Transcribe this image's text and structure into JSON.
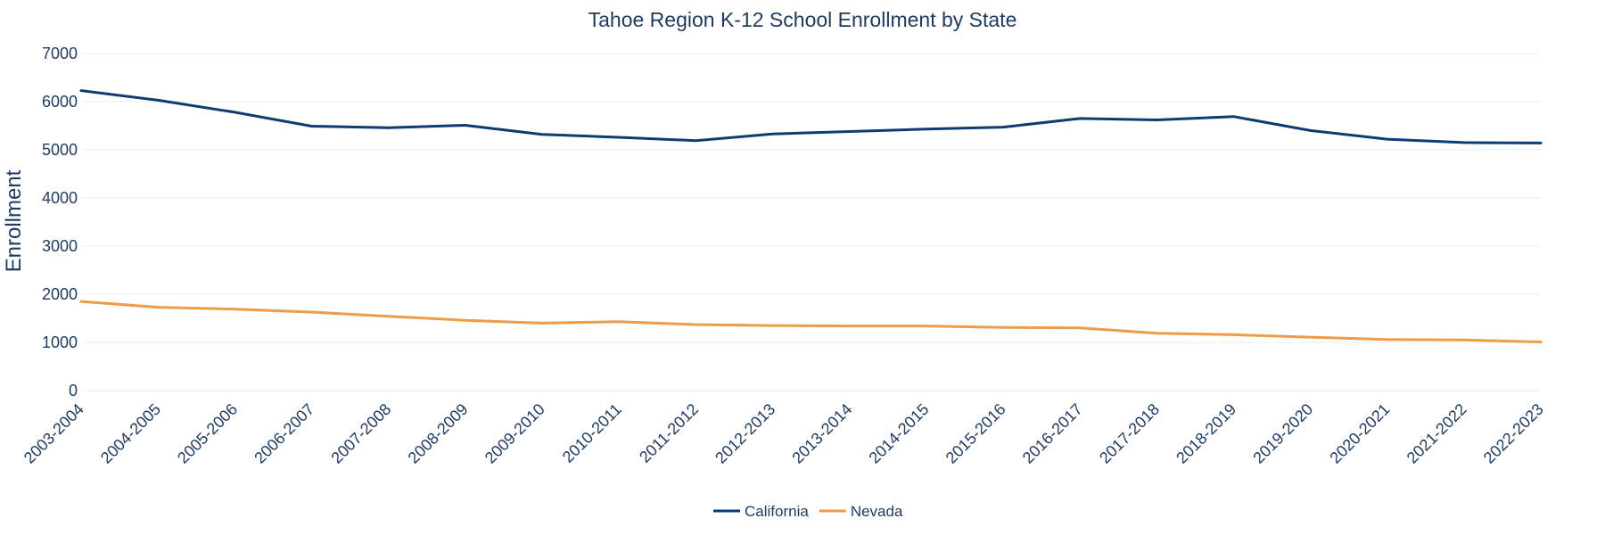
{
  "chart_data": {
    "type": "line",
    "title": "Tahoe Region K-12 School Enrollment by State",
    "xlabel": "",
    "ylabel": "Enrollment",
    "ylim": [
      0,
      7000
    ],
    "yticks": [
      0,
      1000,
      2000,
      3000,
      4000,
      5000,
      6000,
      7000
    ],
    "grid": true,
    "legend_position": "bottom-center",
    "categories": [
      "2003-2004",
      "2004-2005",
      "2005-2006",
      "2006-2007",
      "2007-2008",
      "2008-2009",
      "2009-2010",
      "2010-2011",
      "2011-2012",
      "2012-2013",
      "2013-2014",
      "2014-2015",
      "2015-2016",
      "2016-2017",
      "2017-2018",
      "2018-2019",
      "2019-2020",
      "2020-2021",
      "2021-2022",
      "2022-2023"
    ],
    "series": [
      {
        "name": "California",
        "color": "#0b3d73",
        "values": [
          6230,
          6030,
          5780,
          5490,
          5460,
          5510,
          5320,
          5260,
          5190,
          5330,
          5380,
          5430,
          5470,
          5650,
          5620,
          5690,
          5400,
          5220,
          5150,
          5140
        ]
      },
      {
        "name": "Nevada",
        "color": "#ee9b4a",
        "values": [
          1850,
          1730,
          1690,
          1630,
          1540,
          1460,
          1400,
          1430,
          1370,
          1350,
          1340,
          1340,
          1310,
          1300,
          1190,
          1160,
          1110,
          1060,
          1050,
          1010
        ]
      }
    ]
  }
}
